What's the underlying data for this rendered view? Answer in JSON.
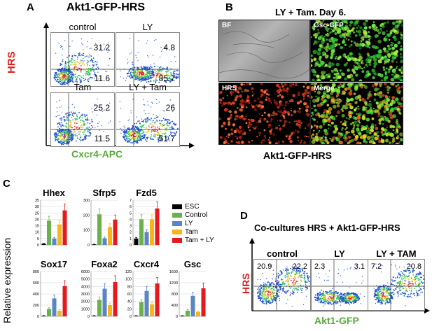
{
  "panel_a": {
    "letter": "A",
    "title": "Akt1-GFP-HRS",
    "y_axis_label": "HRS",
    "x_axis_label": "Cxcr4-APC",
    "plots": [
      {
        "name": "control",
        "upper_right": "31.2",
        "lower_right": "11.6"
      },
      {
        "name": "LY",
        "upper_right": "4.8",
        "lower_right": "85.7"
      },
      {
        "name": "Tam",
        "upper_right": "25.2",
        "lower_right": "11.5"
      },
      {
        "name": "LY + Tam",
        "upper_right": "26",
        "lower_right": "51.7"
      }
    ]
  },
  "panel_b": {
    "letter": "B",
    "title": "LY + Tam. Day 6.",
    "images": [
      {
        "label": "BF"
      },
      {
        "label": "Gsc-GFP"
      },
      {
        "label": "HRS"
      },
      {
        "label": "Merge"
      }
    ],
    "caption": "Akt1-GFP-HRS"
  },
  "panel_c": {
    "letter": "C",
    "y_axis_label": "Relative expression",
    "legend": [
      "ESC",
      "Control",
      "LY",
      "Tam",
      "Tam + LY"
    ],
    "colors": {
      "ESC": "#000000",
      "Control": "#6ab04c",
      "LY": "#5b86c4",
      "Tam": "#f5b51b",
      "Tam + LY": "#e41a1c"
    }
  },
  "chart_data": [
    {
      "type": "bar",
      "title": "Hhex",
      "categories": [
        "ESC",
        "Control",
        "LY",
        "Tam",
        "Tam + LY"
      ],
      "values": [
        1,
        19,
        5,
        16,
        27
      ],
      "ylim": [
        0,
        35
      ],
      "yticks": [
        "0",
        "5",
        "10",
        "15",
        "20",
        "25",
        "30",
        "35"
      ]
    },
    {
      "type": "bar",
      "title": "Sfrp5",
      "categories": [
        "ESC",
        "Control",
        "LY",
        "Tam",
        "Tam + LY"
      ],
      "values": [
        2,
        205,
        45,
        120,
        170
      ],
      "ylim": [
        0,
        300
      ],
      "yticks": [
        "0",
        "100",
        "200",
        "300"
      ]
    },
    {
      "type": "bar",
      "title": "Fzd5",
      "categories": [
        "ESC",
        "Control",
        "LY",
        "Tam",
        "Tam + LY"
      ],
      "values": [
        1,
        4,
        2,
        4,
        5.7
      ],
      "ylim": [
        0,
        7
      ],
      "yticks": [
        "0",
        "1",
        "2",
        "3",
        "4",
        "5",
        "6",
        "7"
      ]
    },
    {
      "type": "bar",
      "title": "Sox17",
      "categories": [
        "ESC",
        "Control",
        "LY",
        "Tam",
        "Tam + LY"
      ],
      "values": [
        2,
        130,
        320,
        100,
        540
      ],
      "ylim": [
        0,
        800
      ],
      "yticks": [
        "0",
        "200",
        "400",
        "600",
        "800"
      ]
    },
    {
      "type": "bar",
      "title": "Foxa2",
      "categories": [
        "ESC",
        "Control",
        "LY",
        "Tam",
        "Tam + LY"
      ],
      "values": [
        20,
        2200,
        3700,
        1500,
        4600
      ],
      "ylim": [
        0,
        6000
      ],
      "yticks": [
        "0",
        "1000",
        "2000",
        "3000",
        "4000",
        "5000",
        "6000"
      ]
    },
    {
      "type": "bar",
      "title": "Cxcr4",
      "categories": [
        "ESC",
        "Control",
        "LY",
        "Tam",
        "Tam + LY"
      ],
      "values": [
        1,
        38,
        68,
        32,
        88
      ],
      "ylim": [
        0,
        120
      ],
      "yticks": [
        "0",
        "20",
        "40",
        "60",
        "80",
        "100",
        "120"
      ]
    },
    {
      "type": "bar",
      "title": "Gsc",
      "categories": [
        "ESC",
        "Control",
        "LY",
        "Tam",
        "Tam + LY"
      ],
      "values": [
        5,
        200,
        730,
        160,
        1000
      ],
      "ylim": [
        0,
        1600
      ],
      "yticks": [
        "0",
        "400",
        "800",
        "1200",
        "1600"
      ]
    }
  ],
  "panel_d": {
    "letter": "D",
    "title": "Co-cultures HRS + Akt1-GFP-HRS",
    "y_axis_label": "HRS",
    "x_axis_label": "Akt1-GFP",
    "plots": [
      {
        "name": "control",
        "upper_left": "20.9",
        "upper_right": "22.2"
      },
      {
        "name": "LY",
        "upper_left": "2.3",
        "upper_right": "3.1"
      },
      {
        "name": "LY + TAM",
        "upper_left": "7.2",
        "upper_right": "20.8"
      }
    ]
  }
}
